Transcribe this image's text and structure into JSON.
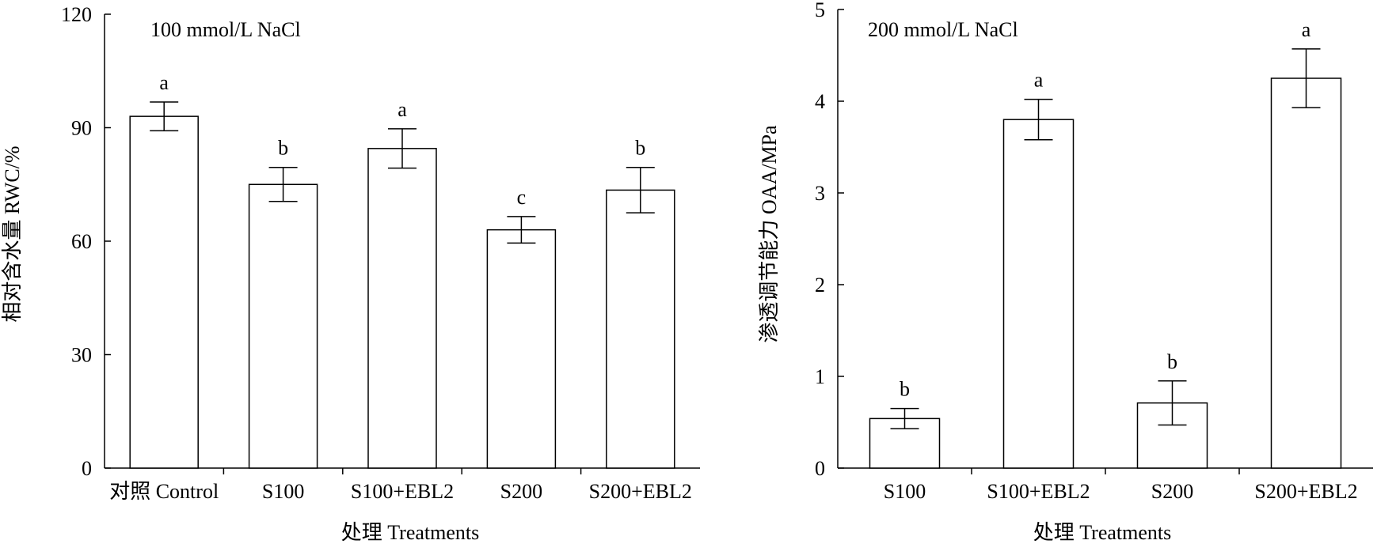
{
  "chart_data": [
    {
      "type": "bar",
      "annotation": "100 mmol/L NaCl",
      "xlabel": "处理 Treatments",
      "ylabel": "相对含水量 RWC/%",
      "ylim": [
        0,
        120
      ],
      "yticks": [
        "0",
        "30",
        "60",
        "90",
        "120"
      ],
      "categories": [
        "对照 Control",
        "S100",
        "S100+EBL2",
        "S200",
        "S200+EBL2"
      ],
      "values": [
        93,
        75,
        84.5,
        63,
        73.5
      ],
      "errors": [
        3.8,
        4.5,
        5.2,
        3.5,
        6
      ],
      "significance": [
        "a",
        "b",
        "a",
        "c",
        "b"
      ],
      "grid": false
    },
    {
      "type": "bar",
      "annotation": "200 mmol/L NaCl",
      "xlabel": "处理 Treatments",
      "ylabel": "渗透调节能力 OAA/MPa",
      "ylim": [
        0,
        5
      ],
      "yticks": [
        "0",
        "1",
        "2",
        "3",
        "4",
        "5"
      ],
      "categories": [
        "S100",
        "S100+EBL2",
        "S200",
        "S200+EBL2"
      ],
      "values": [
        0.54,
        3.8,
        0.71,
        4.25
      ],
      "errors": [
        0.11,
        0.22,
        0.24,
        0.32
      ],
      "significance": [
        "b",
        "a",
        "b",
        "a"
      ],
      "grid": false
    }
  ]
}
